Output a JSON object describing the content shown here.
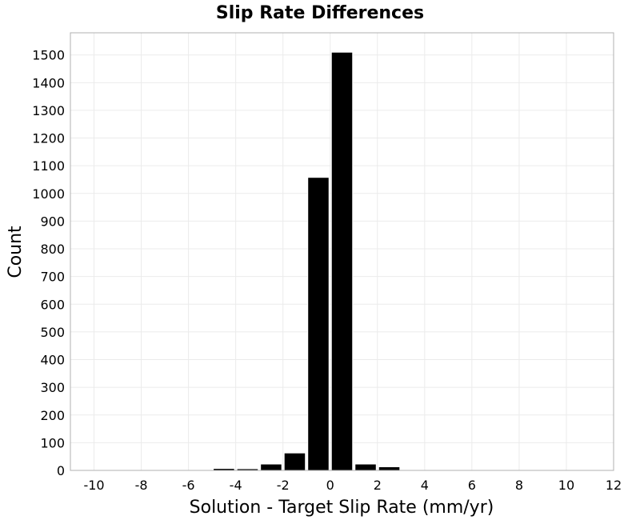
{
  "chart_data": {
    "type": "bar",
    "title": "Slip Rate Differences",
    "xlabel": "Solution - Target Slip Rate (mm/yr)",
    "ylabel": "Count",
    "xlim": [
      -11,
      12
    ],
    "ylim": [
      0,
      1580
    ],
    "x_ticks": [
      -10,
      -8,
      -6,
      -4,
      -2,
      0,
      2,
      4,
      6,
      8,
      10,
      12
    ],
    "y_ticks": [
      0,
      100,
      200,
      300,
      400,
      500,
      600,
      700,
      800,
      900,
      1000,
      1100,
      1200,
      1300,
      1400,
      1500
    ],
    "bin_width": 1,
    "bins": [
      {
        "x": -8.5,
        "count": 2
      },
      {
        "x": -6.5,
        "count": 1
      },
      {
        "x": -4.5,
        "count": 7
      },
      {
        "x": -3.5,
        "count": 6
      },
      {
        "x": -2.5,
        "count": 23
      },
      {
        "x": -1.5,
        "count": 63
      },
      {
        "x": -0.5,
        "count": 1058
      },
      {
        "x": 0.5,
        "count": 1510
      },
      {
        "x": 1.5,
        "count": 23
      },
      {
        "x": 2.5,
        "count": 13
      },
      {
        "x": 3.5,
        "count": 2
      },
      {
        "x": 4.5,
        "count": 1
      }
    ],
    "grid": true,
    "bar_color": "#000000"
  }
}
